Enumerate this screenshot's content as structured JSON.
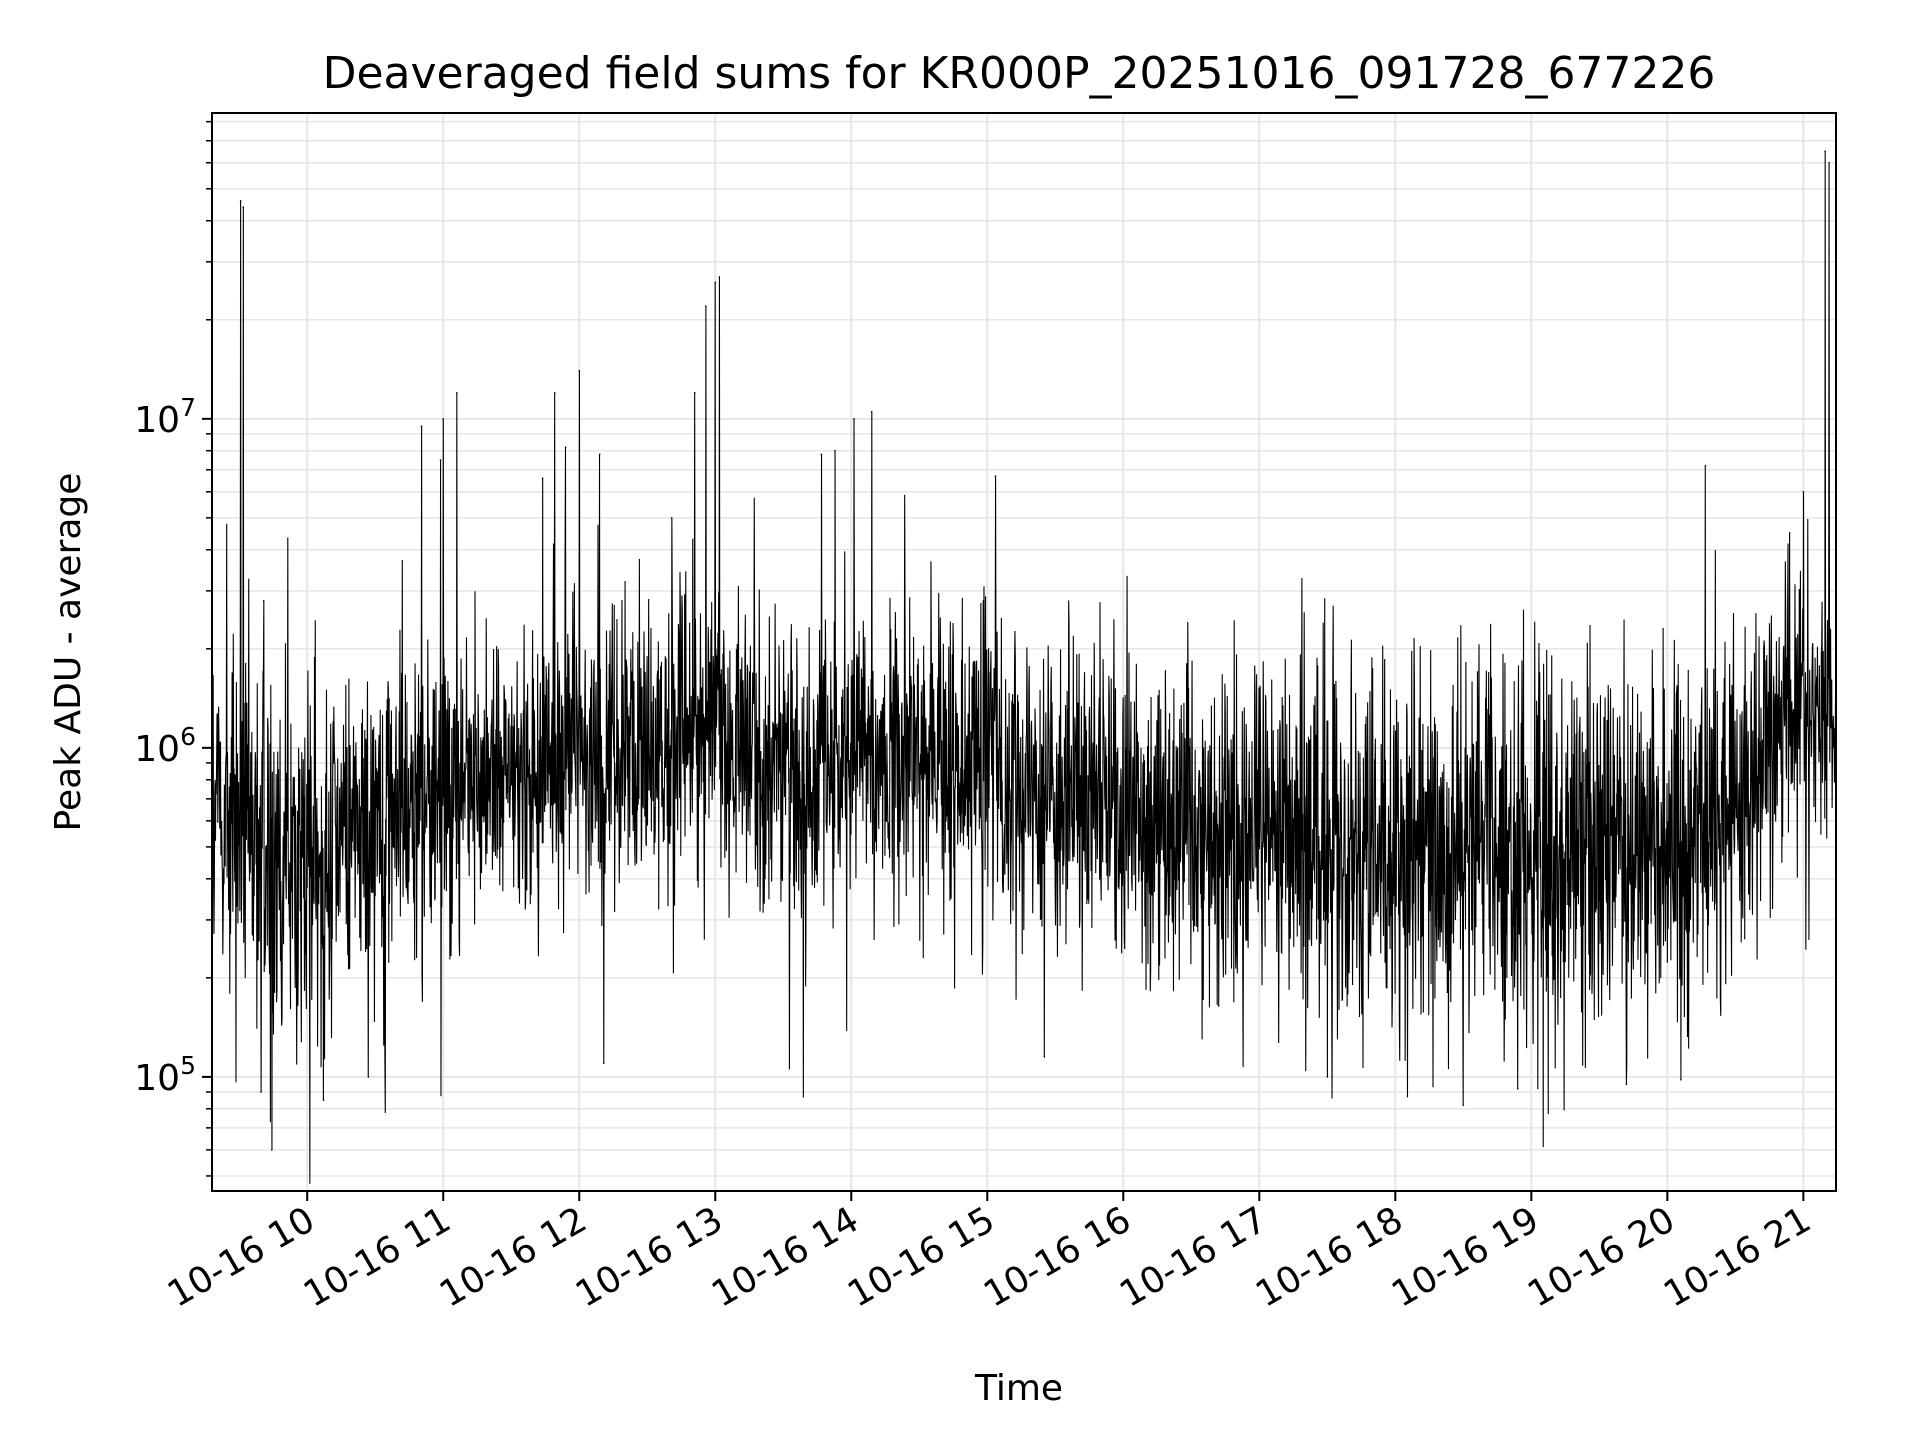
{
  "chart_data": {
    "type": "line",
    "title": "Deaveraged field sums for KR000P_20251016_091728_677226",
    "xlabel": "Time",
    "ylabel": "Peak ADU - average",
    "yscale": "log",
    "ylim": [
      45000,
      85000000
    ],
    "xlim_hours": [
      9.3,
      21.24
    ],
    "x_ticks": [
      {
        "hour": 10,
        "label": "10-16 10"
      },
      {
        "hour": 11,
        "label": "10-16 11"
      },
      {
        "hour": 12,
        "label": "10-16 12"
      },
      {
        "hour": 13,
        "label": "10-16 13"
      },
      {
        "hour": 14,
        "label": "10-16 14"
      },
      {
        "hour": 15,
        "label": "10-16 15"
      },
      {
        "hour": 16,
        "label": "10-16 16"
      },
      {
        "hour": 17,
        "label": "10-16 17"
      },
      {
        "hour": 18,
        "label": "10-16 18"
      },
      {
        "hour": 19,
        "label": "10-16 19"
      },
      {
        "hour": 20,
        "label": "10-16 20"
      },
      {
        "hour": 21,
        "label": "10-16 21"
      }
    ],
    "y_ticks": [
      {
        "value": 100000,
        "base": "10",
        "exp": "5"
      },
      {
        "value": 1000000,
        "base": "10",
        "exp": "6"
      },
      {
        "value": 10000000,
        "base": "10",
        "exp": "7"
      }
    ],
    "grid": true,
    "line_color": "#000000",
    "grid_color": "#e6e6e6",
    "trend_envelope": [
      {
        "hour": 9.3,
        "center": 650000,
        "spread": 0.42
      },
      {
        "hour": 9.5,
        "center": 600000,
        "spread": 0.5
      },
      {
        "hour": 10.0,
        "center": 450000,
        "spread": 0.5
      },
      {
        "hour": 10.5,
        "center": 600000,
        "spread": 0.45
      },
      {
        "hour": 11.0,
        "center": 750000,
        "spread": 0.42
      },
      {
        "hour": 11.5,
        "center": 850000,
        "spread": 0.4
      },
      {
        "hour": 12.0,
        "center": 950000,
        "spread": 0.4
      },
      {
        "hour": 12.5,
        "center": 1050000,
        "spread": 0.4
      },
      {
        "hour": 13.0,
        "center": 1100000,
        "spread": 0.42
      },
      {
        "hour": 13.5,
        "center": 800000,
        "spread": 0.4
      },
      {
        "hour": 14.0,
        "center": 900000,
        "spread": 0.38
      },
      {
        "hour": 14.5,
        "center": 950000,
        "spread": 0.38
      },
      {
        "hour": 15.0,
        "center": 900000,
        "spread": 0.4
      },
      {
        "hour": 15.5,
        "center": 700000,
        "spread": 0.42
      },
      {
        "hour": 16.0,
        "center": 650000,
        "spread": 0.42
      },
      {
        "hour": 16.5,
        "center": 600000,
        "spread": 0.45
      },
      {
        "hour": 17.0,
        "center": 550000,
        "spread": 0.48
      },
      {
        "hour": 17.5,
        "center": 500000,
        "spread": 0.5
      },
      {
        "hour": 18.0,
        "center": 480000,
        "spread": 0.5
      },
      {
        "hour": 18.5,
        "center": 480000,
        "spread": 0.5
      },
      {
        "hour": 19.0,
        "center": 480000,
        "spread": 0.5
      },
      {
        "hour": 19.5,
        "center": 480000,
        "spread": 0.5
      },
      {
        "hour": 20.0,
        "center": 520000,
        "spread": 0.48
      },
      {
        "hour": 20.5,
        "center": 650000,
        "spread": 0.45
      },
      {
        "hour": 20.8,
        "center": 1100000,
        "spread": 0.35
      },
      {
        "hour": 21.0,
        "center": 1400000,
        "spread": 0.3
      },
      {
        "hour": 21.24,
        "center": 1200000,
        "spread": 0.3
      }
    ],
    "peaks": [
      {
        "hour": 9.51,
        "value": 46000000
      },
      {
        "hour": 9.53,
        "value": 44000000
      },
      {
        "hour": 9.68,
        "value": 2800000
      },
      {
        "hour": 10.7,
        "value": 3700000
      },
      {
        "hour": 10.84,
        "value": 9500000
      },
      {
        "hour": 10.98,
        "value": 7500000
      },
      {
        "hour": 11.0,
        "value": 10000000
      },
      {
        "hour": 11.1,
        "value": 12000000
      },
      {
        "hour": 11.73,
        "value": 6600000
      },
      {
        "hour": 11.82,
        "value": 12000000
      },
      {
        "hour": 11.9,
        "value": 8200000
      },
      {
        "hour": 12.0,
        "value": 14000000
      },
      {
        "hour": 12.15,
        "value": 7800000
      },
      {
        "hour": 12.68,
        "value": 5000000
      },
      {
        "hour": 12.85,
        "value": 12000000
      },
      {
        "hour": 12.93,
        "value": 22000000
      },
      {
        "hour": 13.0,
        "value": 26000000
      },
      {
        "hour": 13.03,
        "value": 27000000
      },
      {
        "hour": 13.78,
        "value": 7800000
      },
      {
        "hour": 13.88,
        "value": 8000000
      },
      {
        "hour": 14.02,
        "value": 10000000
      },
      {
        "hour": 14.15,
        "value": 10500000
      },
      {
        "hour": 15.06,
        "value": 6700000
      },
      {
        "hour": 20.28,
        "value": 7200000
      },
      {
        "hour": 20.9,
        "value": 4500000
      },
      {
        "hour": 21.0,
        "value": 6000000
      },
      {
        "hour": 21.16,
        "value": 65000000
      },
      {
        "hour": 21.19,
        "value": 60000000
      }
    ],
    "dips": [
      {
        "hour": 9.66,
        "value": 90000
      },
      {
        "hour": 9.74,
        "value": 60000
      },
      {
        "hour": 10.12,
        "value": 85000
      },
      {
        "hour": 10.45,
        "value": 100000
      },
      {
        "hour": 12.18,
        "value": 110000
      },
      {
        "hour": 15.42,
        "value": 115000
      },
      {
        "hour": 17.5,
        "value": 100000
      },
      {
        "hour": 18.5,
        "value": 82000
      },
      {
        "hour": 18.9,
        "value": 92000
      },
      {
        "hour": 19.7,
        "value": 95000
      },
      {
        "hour": 20.1,
        "value": 98000
      }
    ]
  }
}
